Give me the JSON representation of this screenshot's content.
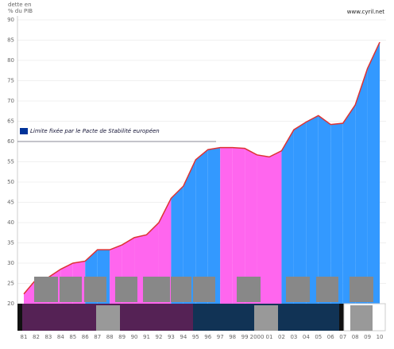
{
  "chart_data": {
    "type": "area",
    "y_label_lines": [
      "dette en",
      "% du PIB"
    ],
    "source": "www.cyril.net",
    "annotation": "Limite fixée par le Pacte de Stabilité européen",
    "annotation_value": 60,
    "categories": [
      "81",
      "82",
      "83",
      "84",
      "85",
      "86",
      "87",
      "88",
      "89",
      "90",
      "91",
      "92",
      "93",
      "94",
      "95",
      "96",
      "97",
      "98",
      "99",
      "2000",
      "01",
      "02",
      "03",
      "04",
      "05",
      "06",
      "07",
      "08",
      "09",
      "10"
    ],
    "values": [
      22.4,
      26,
      26.5,
      28.5,
      30,
      30.5,
      33.3,
      33.3,
      34.5,
      36.3,
      37,
      40,
      46,
      49,
      55.5,
      58,
      58.5,
      58.5,
      58.3,
      56.7,
      56.2,
      57.7,
      62.9,
      64.8,
      66.4,
      64.2,
      64.5,
      69,
      78,
      84.5
    ],
    "segment_colors": [
      "#ff66ee",
      "#ff66ee",
      "#ff66ee",
      "#ff66ee",
      "#ff66ee",
      "#3399ff",
      "#3399ff",
      "#ff66ee",
      "#ff66ee",
      "#ff66ee",
      "#ff66ee",
      "#ff66ee",
      "#3399ff",
      "#3399ff",
      "#3399ff",
      "#3399ff",
      "#ff66ee",
      "#ff66ee",
      "#ff66ee",
      "#ff66ee",
      "#ff66ee",
      "#3399ff",
      "#3399ff",
      "#3399ff",
      "#3399ff",
      "#3399ff",
      "#3399ff",
      "#3399ff",
      "#3399ff"
    ],
    "line_color": "#dd3333",
    "ylim": [
      20,
      90
    ],
    "yticks": [
      20,
      25,
      30,
      35,
      40,
      45,
      50,
      55,
      60,
      65,
      70,
      75,
      80,
      85,
      90
    ],
    "grid": true
  }
}
